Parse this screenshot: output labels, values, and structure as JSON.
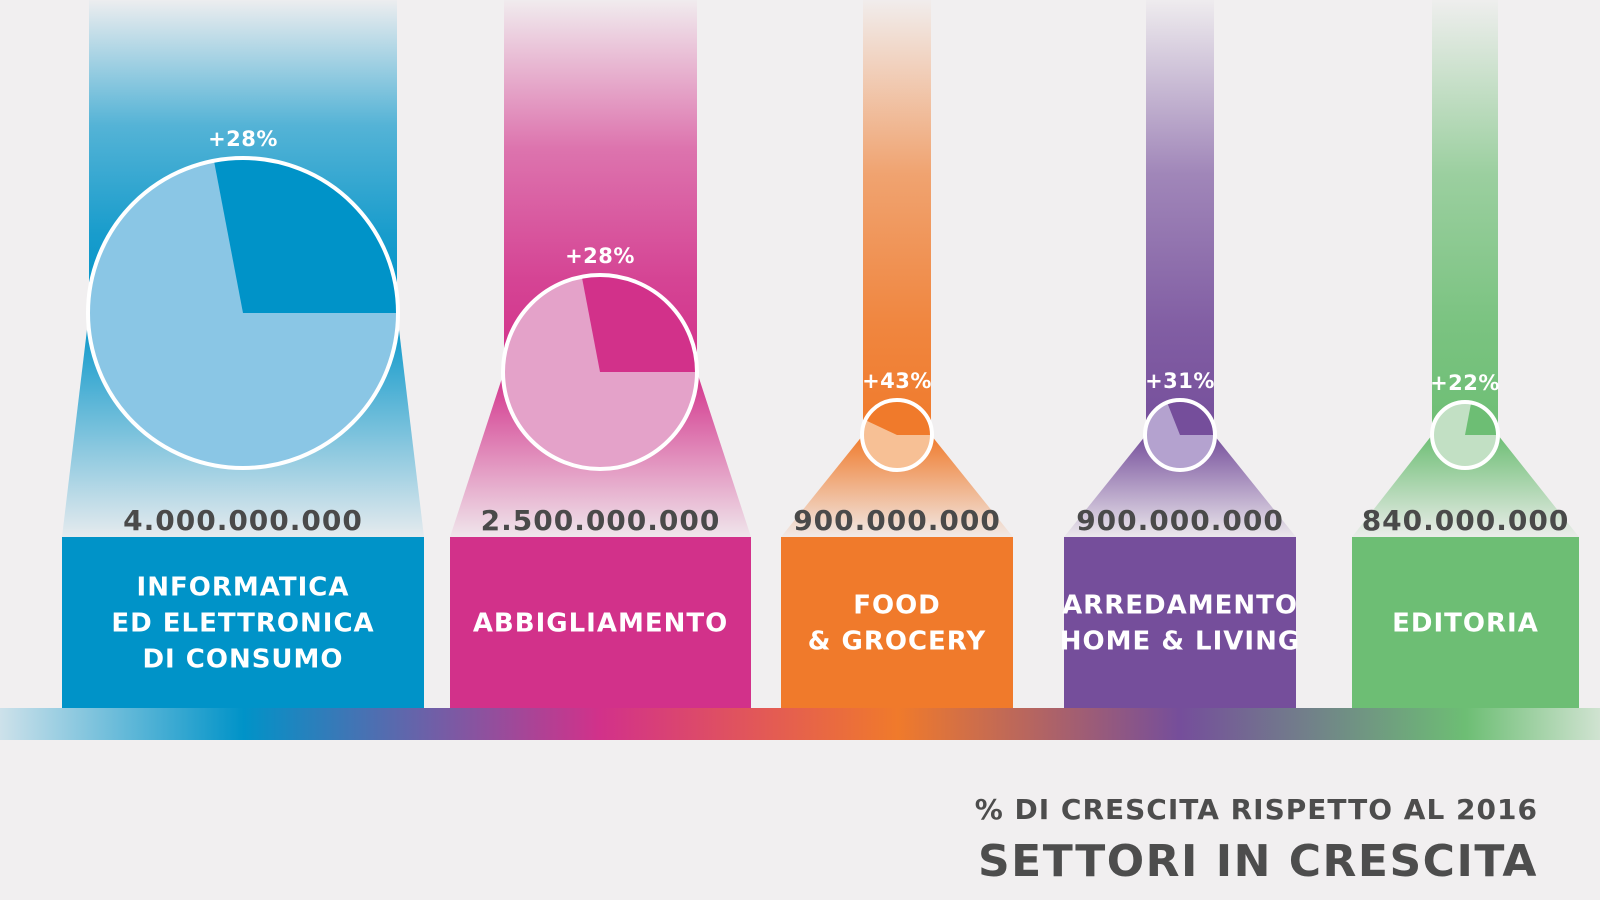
{
  "header": {
    "subtitle": "% DI CRESCITA RISPETTO AL 2016",
    "title": "SETTORI IN CRESCITA"
  },
  "colors": {
    "background": "#f1eff0",
    "text_dark": "#4d4d4d"
  },
  "chart_data": {
    "type": "pie",
    "title": "SETTORI IN CRESCITA",
    "subtitle": "% DI CRESCITA RISPETTO AL 2016",
    "sectors": [
      {
        "label_lines": [
          "INFORMATICA",
          "ED ELETTRONICA",
          "DI CONSUMO"
        ],
        "value": 4000000000,
        "value_label": "4.000.000.000",
        "growth_pct": 28,
        "growth_label": "+28%",
        "color": "#0093c8",
        "light_color": "#8ac6e5"
      },
      {
        "label_lines": [
          "ABBIGLIAMENTO"
        ],
        "value": 2500000000,
        "value_label": "2.500.000.000",
        "growth_pct": 28,
        "growth_label": "+28%",
        "color": "#d2318a",
        "light_color": "#e4a2c9"
      },
      {
        "label_lines": [
          "FOOD",
          "& GROCERY"
        ],
        "value": 900000000,
        "value_label": "900.000.000",
        "growth_pct": 43,
        "growth_label": "+43%",
        "color": "#f07a2b",
        "light_color": "#f7c095"
      },
      {
        "label_lines": [
          "ARREDAMENTO",
          "HOME & LIVING"
        ],
        "value": 900000000,
        "value_label": "900.000.000",
        "growth_pct": 31,
        "growth_label": "+31%",
        "color": "#754e9b",
        "light_color": "#b4a2cf"
      },
      {
        "label_lines": [
          "EDITORIA"
        ],
        "value": 840000000,
        "value_label": "840.000.000",
        "growth_pct": 22,
        "growth_label": "+22%",
        "color": "#6dbe74",
        "light_color": "#c2e0c4"
      }
    ]
  }
}
